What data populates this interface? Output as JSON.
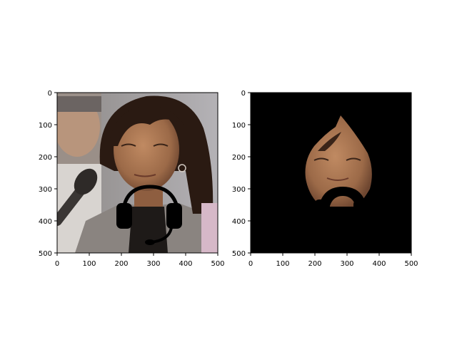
{
  "chart_data": [
    {
      "type": "image",
      "title": "",
      "xlabel": "",
      "ylabel": "",
      "xlim": [
        0,
        500
      ],
      "ylim": [
        500,
        0
      ],
      "xticks": [
        0,
        100,
        200,
        300,
        400,
        500
      ],
      "yticks": [
        0,
        100,
        200,
        300,
        400,
        500
      ],
      "content": "photo of a woman with a black headset overlay drawn on her lower face"
    },
    {
      "type": "image",
      "title": "",
      "xlabel": "",
      "ylabel": "",
      "xlim": [
        0,
        500
      ],
      "ylim": [
        500,
        0
      ],
      "xticks": [
        0,
        100,
        200,
        300,
        400,
        500
      ],
      "yticks": [
        0,
        100,
        200,
        300,
        400,
        500
      ],
      "content": "segmented face region on black background with the headset area masked out"
    }
  ],
  "colors": {
    "background": "#ffffff",
    "mask": "#000000",
    "skin": "#b07a55",
    "hair": "#2a1a12",
    "wall": "#a8a6a8",
    "jacket": "#8a8480"
  }
}
